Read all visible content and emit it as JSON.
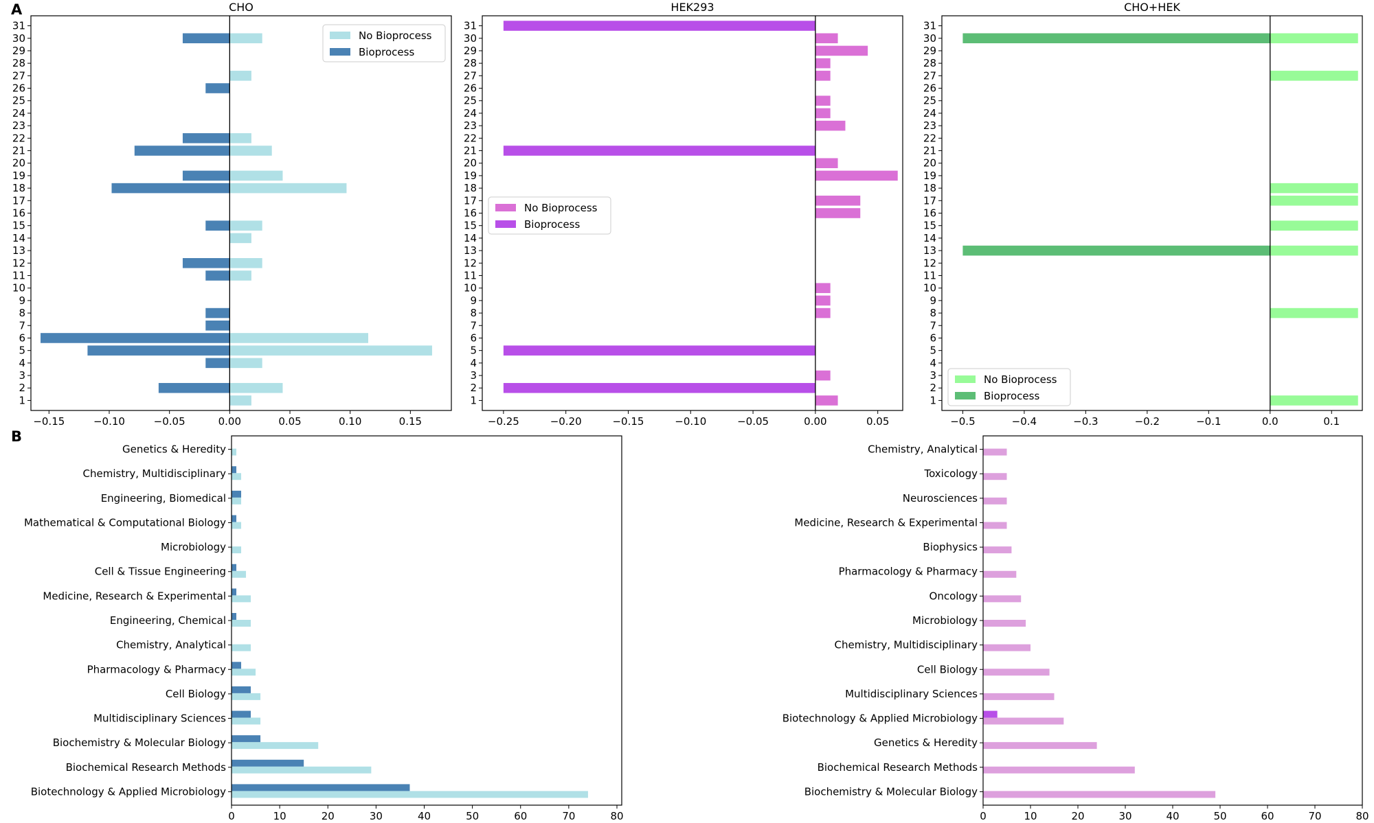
{
  "panel_labels": [
    "A",
    "B"
  ],
  "chart_data": [
    {
      "id": "cho",
      "type": "bar",
      "orientation": "horizontal",
      "title": "CHO",
      "categories": [
        "1",
        "2",
        "3",
        "4",
        "5",
        "6",
        "7",
        "8",
        "9",
        "10",
        "11",
        "12",
        "13",
        "14",
        "15",
        "16",
        "17",
        "18",
        "19",
        "20",
        "21",
        "22",
        "23",
        "24",
        "25",
        "26",
        "27",
        "28",
        "29",
        "30",
        "31"
      ],
      "series": [
        {
          "name": "No Bioprocess",
          "color": "#b0e0e6",
          "values": [
            0.018,
            0.044,
            0,
            0.027,
            0.168,
            0.115,
            0,
            0,
            0,
            0,
            0.018,
            0.027,
            0,
            0.018,
            0.027,
            0,
            0,
            0.097,
            0.044,
            0,
            0.035,
            0.018,
            0,
            0,
            0,
            0,
            0.018,
            0,
            0,
            0.027,
            0
          ]
        },
        {
          "name": "Bioprocess",
          "color": "#4a82b4",
          "values": [
            0,
            -0.059,
            0,
            -0.02,
            -0.118,
            -0.157,
            -0.02,
            -0.02,
            0,
            0,
            -0.02,
            -0.039,
            0,
            0,
            -0.02,
            0,
            0,
            -0.098,
            -0.039,
            0,
            -0.079,
            -0.039,
            0,
            0,
            0,
            -0.02,
            0,
            0,
            0,
            -0.039,
            0
          ]
        }
      ],
      "xlim": [
        -0.165,
        0.184
      ],
      "xticks": [
        -0.15,
        -0.1,
        -0.05,
        0.0,
        0.05,
        0.1,
        0.15
      ],
      "xtick_labels": [
        "−0.15",
        "−0.10",
        "−0.05",
        "0.00",
        "0.05",
        "0.10",
        "0.15"
      ],
      "legend_position": "top-right"
    },
    {
      "id": "hek",
      "type": "bar",
      "orientation": "horizontal",
      "title": "HEK293",
      "categories": [
        "1",
        "2",
        "3",
        "4",
        "5",
        "6",
        "7",
        "8",
        "9",
        "10",
        "11",
        "12",
        "13",
        "14",
        "15",
        "16",
        "17",
        "18",
        "19",
        "20",
        "21",
        "22",
        "23",
        "24",
        "25",
        "26",
        "27",
        "28",
        "29",
        "30",
        "31"
      ],
      "series": [
        {
          "name": "No Bioprocess",
          "color": "#da70d6",
          "values": [
            0.018,
            0,
            0.012,
            0,
            0,
            0,
            0,
            0.012,
            0.012,
            0.012,
            0,
            0,
            0,
            0,
            0,
            0.036,
            0.036,
            0,
            0.066,
            0.018,
            0,
            0,
            0.024,
            0.012,
            0.012,
            0,
            0.012,
            0.012,
            0.042,
            0.018,
            0
          ]
        },
        {
          "name": "Bioprocess",
          "color": "#b84fe8",
          "values": [
            0,
            -0.25,
            0,
            0,
            -0.25,
            0,
            0,
            0,
            0,
            0,
            0,
            0,
            0,
            0,
            0,
            0,
            0,
            0,
            0,
            0,
            -0.25,
            0,
            0,
            0,
            0,
            0,
            0,
            0,
            0,
            0,
            -0.25
          ]
        }
      ],
      "xlim": [
        -0.267,
        0.07
      ],
      "xticks": [
        -0.25,
        -0.2,
        -0.15,
        -0.1,
        -0.05,
        0.0,
        0.05
      ],
      "xtick_labels": [
        "−0.25",
        "−0.20",
        "−0.15",
        "−0.10",
        "−0.05",
        "0.00",
        "0.05"
      ],
      "legend_position": "center-left"
    },
    {
      "id": "chohek",
      "type": "bar",
      "orientation": "horizontal",
      "title": "CHO+HEK",
      "categories": [
        "1",
        "2",
        "3",
        "4",
        "5",
        "6",
        "7",
        "8",
        "9",
        "10",
        "11",
        "12",
        "13",
        "14",
        "15",
        "16",
        "17",
        "18",
        "19",
        "20",
        "21",
        "22",
        "23",
        "24",
        "25",
        "26",
        "27",
        "28",
        "29",
        "30",
        "31"
      ],
      "series": [
        {
          "name": "No Bioprocess",
          "color": "#98fb98",
          "values": [
            0.143,
            0,
            0,
            0,
            0,
            0,
            0,
            0.143,
            0,
            0,
            0,
            0,
            0.143,
            0,
            0.143,
            0,
            0.143,
            0.143,
            0,
            0,
            0,
            0,
            0,
            0,
            0,
            0,
            0.143,
            0,
            0,
            0.143,
            0
          ]
        },
        {
          "name": "Bioprocess",
          "color": "#5cbd75",
          "values": [
            0,
            0,
            0,
            0,
            0,
            0,
            0,
            0,
            0,
            0,
            0,
            0,
            -0.5,
            0,
            0,
            0,
            0,
            0,
            0,
            0,
            0,
            0,
            0,
            0,
            0,
            0,
            0,
            0,
            0,
            -0.5,
            0
          ]
        }
      ],
      "xlim": [
        -0.534,
        0.15
      ],
      "xticks": [
        -0.5,
        -0.4,
        -0.3,
        -0.2,
        -0.1,
        0.0,
        0.1
      ],
      "xtick_labels": [
        "−0.5",
        "−0.4",
        "−0.3",
        "−0.2",
        "−0.1",
        "0.0",
        "0.1"
      ],
      "legend_position": "bottom-left"
    },
    {
      "id": "cho_cat",
      "type": "bar",
      "orientation": "horizontal",
      "title": "",
      "categories": [
        "Biotechnology & Applied Microbiology",
        "Biochemical Research Methods",
        "Biochemistry & Molecular Biology",
        "Multidisciplinary Sciences",
        "Cell Biology",
        "Pharmacology & Pharmacy",
        "Chemistry, Analytical",
        "Engineering, Chemical",
        "Medicine, Research & Experimental",
        "Cell & Tissue Engineering",
        "Microbiology",
        "Mathematical & Computational Biology",
        "Engineering, Biomedical",
        "Chemistry, Multidisciplinary",
        "Genetics & Heredity"
      ],
      "series": [
        {
          "name": "No Bioprocess",
          "color": "#b0e0e6",
          "values": [
            74,
            29,
            18,
            6,
            6,
            5,
            4,
            4,
            4,
            3,
            2,
            2,
            2,
            2,
            1
          ]
        },
        {
          "name": "Bioprocess",
          "color": "#4a82b4",
          "values": [
            37,
            15,
            6,
            4,
            4,
            2,
            0,
            1,
            1,
            1,
            0,
            1,
            2,
            1,
            0
          ]
        }
      ],
      "xlim": [
        0,
        81
      ],
      "xticks": [
        0,
        10,
        20,
        30,
        40,
        50,
        60,
        70,
        80
      ],
      "xtick_labels": [
        "0",
        "10",
        "20",
        "30",
        "40",
        "50",
        "60",
        "70",
        "80"
      ]
    },
    {
      "id": "hek_cat",
      "type": "bar",
      "orientation": "horizontal",
      "title": "",
      "categories": [
        "Biochemistry & Molecular Biology",
        "Biochemical Research Methods",
        "Genetics & Heredity",
        "Biotechnology & Applied Microbiology",
        "Multidisciplinary Sciences",
        "Cell Biology",
        "Chemistry, Multidisciplinary",
        "Microbiology",
        "Oncology",
        "Pharmacology & Pharmacy",
        "Biophysics",
        "Medicine, Research & Experimental",
        "Neurosciences",
        "Toxicology",
        "Chemistry, Analytical"
      ],
      "series": [
        {
          "name": "No Bioprocess",
          "color": "#dda0dd",
          "values": [
            49,
            32,
            24,
            17,
            15,
            14,
            10,
            9,
            8,
            7,
            6,
            5,
            5,
            5,
            5
          ]
        },
        {
          "name": "Bioprocess",
          "color": "#b84fe8",
          "values": [
            0,
            0,
            0,
            3,
            0,
            0,
            0,
            0,
            0,
            0,
            0,
            0,
            0,
            0,
            0
          ]
        }
      ],
      "xlim": [
        0,
        80
      ],
      "xticks": [
        0,
        10,
        20,
        30,
        40,
        50,
        60,
        70,
        80
      ],
      "xtick_labels": [
        "0",
        "10",
        "20",
        "30",
        "40",
        "50",
        "60",
        "70",
        "80"
      ]
    }
  ]
}
